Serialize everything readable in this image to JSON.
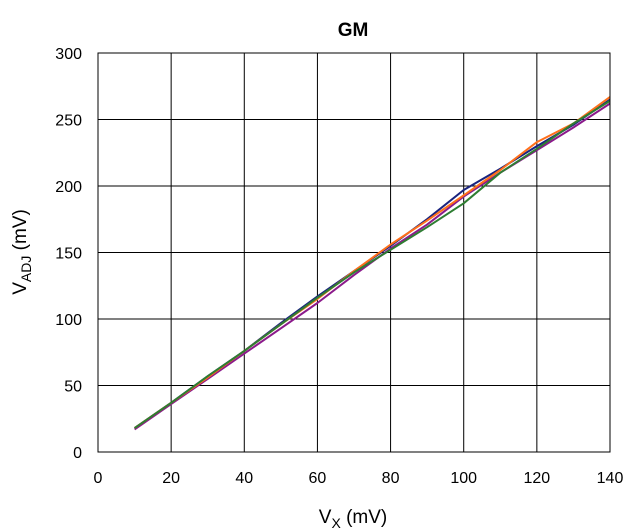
{
  "chart_data": {
    "type": "line",
    "title": "GM",
    "xlabel": {
      "main": "V",
      "sub": "X",
      "rest": " (mV)"
    },
    "ylabel": {
      "main": "V",
      "sub": "ADJ",
      "rest": " (mV)"
    },
    "xlim": [
      0,
      140
    ],
    "ylim": [
      0,
      300
    ],
    "xticks": [
      "0",
      "20",
      "40",
      "60",
      "80",
      "100",
      "120",
      "140"
    ],
    "yticks": [
      "0",
      "50",
      "100",
      "150",
      "200",
      "250",
      "300"
    ],
    "grid": true,
    "legend": "none",
    "series": [
      {
        "color": "#8b1a8b",
        "x": [
          10,
          20,
          30,
          40,
          50,
          60,
          70,
          80,
          90,
          100,
          110,
          120,
          130,
          140
        ],
        "y": [
          17,
          36,
          55,
          74,
          93,
          112,
          133,
          153,
          171,
          192,
          210,
          227,
          244,
          262
        ]
      },
      {
        "color": "#1a237e",
        "x": [
          10,
          20,
          30,
          40,
          50,
          60,
          70,
          80,
          90,
          100,
          110,
          120,
          130,
          140
        ],
        "y": [
          18,
          37,
          57,
          76,
          97,
          117,
          136,
          155,
          175,
          197,
          213,
          230,
          246,
          265
        ]
      },
      {
        "color": "#ff6f1a",
        "x": [
          10,
          20,
          30,
          40,
          50,
          60,
          70,
          80,
          90,
          100,
          110,
          120,
          130,
          140
        ],
        "y": [
          18,
          37,
          56,
          76,
          96,
          115,
          136,
          156,
          174,
          193,
          212,
          233,
          247,
          267
        ]
      },
      {
        "color": "#2e7d32",
        "x": [
          10,
          20,
          30,
          40,
          50,
          60,
          70,
          80,
          90,
          100,
          110,
          120,
          130,
          140
        ],
        "y": [
          18,
          37,
          57,
          76,
          96,
          116,
          135,
          152,
          169,
          187,
          210,
          228,
          247,
          264
        ]
      }
    ]
  }
}
